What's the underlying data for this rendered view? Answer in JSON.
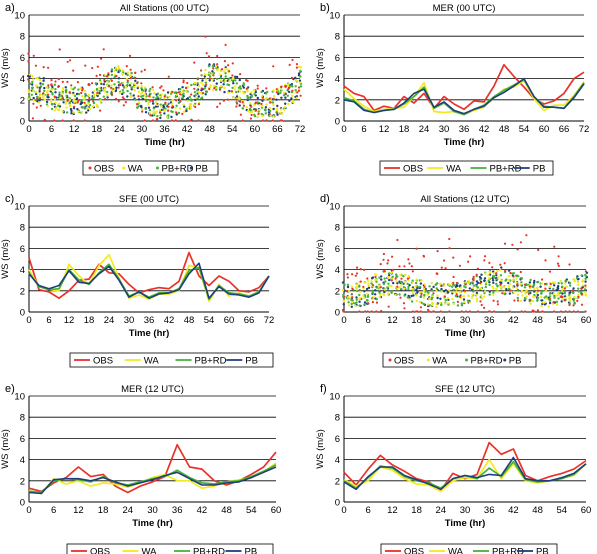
{
  "colors": {
    "OBS": "#e8322a",
    "WA": "#f2ea1c",
    "PB+RD": "#45b23a",
    "PB": "#1f3f7a"
  },
  "chart_data": [
    {
      "panel_letter": "a)",
      "title": "All Stations (00 UTC)",
      "type": "scatter",
      "xlabel": "Time (hr)",
      "ylabel": "WS (m/s)",
      "xlim": [
        0,
        72
      ],
      "ylim": [
        0,
        10
      ],
      "xticks": [
        "0",
        "6",
        "12",
        "18",
        "24",
        "30",
        "36",
        "42",
        "48",
        "54",
        "60",
        "66",
        "72"
      ],
      "yticks": [
        "0",
        "2",
        "4",
        "6",
        "8",
        "10"
      ],
      "grid": true,
      "legend_style": "dots",
      "legend": [
        "OBS",
        "WA",
        "PB+RD",
        "PB"
      ],
      "series_mean": {
        "x": [
          0,
          3,
          6,
          9,
          12,
          15,
          18,
          21,
          24,
          27,
          30,
          33,
          36,
          39,
          42,
          45,
          48,
          51,
          54,
          57,
          60,
          63,
          66,
          69,
          72
        ],
        "y": [
          3.2,
          3.0,
          2.3,
          2.0,
          1.9,
          2.0,
          2.6,
          3.5,
          3.9,
          3.4,
          2.0,
          1.7,
          1.5,
          1.6,
          2.2,
          2.8,
          4.1,
          4.2,
          3.3,
          2.3,
          1.7,
          1.5,
          1.8,
          2.3,
          4.0
        ]
      },
      "spread": [
        1.6,
        2.6
      ]
    },
    {
      "panel_letter": "b)",
      "title": "MER (00 UTC)",
      "type": "line",
      "xlabel": "Time (hr)",
      "ylabel": "WS (m/s)",
      "xlim": [
        0,
        72
      ],
      "ylim": [
        0,
        10
      ],
      "xticks": [
        "0",
        "6",
        "12",
        "18",
        "24",
        "30",
        "36",
        "42",
        "48",
        "54",
        "60",
        "66",
        "72"
      ],
      "yticks": [
        "0",
        "2",
        "4",
        "6",
        "8",
        "10"
      ],
      "grid": true,
      "legend_style": "lines",
      "legend": [
        "OBS",
        "WA",
        "PB+RD",
        "PB"
      ],
      "x": [
        0,
        3,
        6,
        9,
        12,
        15,
        18,
        21,
        24,
        27,
        30,
        33,
        36,
        39,
        42,
        45,
        48,
        51,
        54,
        57,
        60,
        63,
        66,
        69,
        72
      ],
      "series": [
        {
          "name": "OBS",
          "values": [
            3.3,
            2.6,
            2.3,
            1.0,
            1.4,
            1.2,
            2.3,
            1.7,
            2.6,
            1.2,
            2.3,
            1.6,
            1.1,
            1.9,
            1.8,
            3.3,
            5.3,
            4.2,
            3.2,
            2.1,
            1.6,
            1.9,
            2.6,
            4.0,
            4.6
          ]
        },
        {
          "name": "WA",
          "values": [
            3.0,
            2.1,
            1.4,
            0.9,
            1.1,
            1.2,
            1.3,
            2.3,
            3.6,
            0.9,
            0.8,
            0.9,
            0.6,
            1.0,
            1.3,
            2.2,
            3.0,
            3.2,
            3.8,
            2.1,
            1.0,
            1.5,
            1.5,
            2.4,
            3.7
          ]
        },
        {
          "name": "PB+RD",
          "values": [
            2.2,
            1.9,
            1.1,
            0.8,
            1.0,
            1.1,
            1.6,
            2.3,
            3.2,
            1.2,
            1.7,
            0.9,
            0.6,
            1.1,
            1.5,
            2.3,
            2.9,
            3.4,
            3.9,
            2.3,
            1.4,
            1.3,
            1.2,
            2.3,
            3.6
          ]
        },
        {
          "name": "PB",
          "values": [
            2.0,
            1.8,
            1.0,
            0.8,
            1.0,
            1.1,
            1.7,
            2.6,
            3.0,
            1.3,
            1.8,
            1.0,
            0.7,
            1.1,
            1.4,
            2.2,
            2.7,
            3.3,
            4.0,
            2.3,
            1.3,
            1.3,
            1.2,
            2.2,
            3.5
          ]
        }
      ]
    },
    {
      "panel_letter": "c)",
      "title": "SFE (00 UTC)",
      "type": "line",
      "xlabel": "Time (hr)",
      "ylabel": "WS (m/s)",
      "xlim": [
        0,
        72
      ],
      "ylim": [
        0,
        10
      ],
      "xticks": [
        "0",
        "6",
        "12",
        "18",
        "24",
        "30",
        "36",
        "42",
        "48",
        "54",
        "60",
        "66",
        "72"
      ],
      "yticks": [
        "0",
        "2",
        "4",
        "6",
        "8",
        "10"
      ],
      "grid": true,
      "legend_style": "lines",
      "legend": [
        "OBS",
        "WA",
        "PB+RD",
        "PB"
      ],
      "x": [
        0,
        3,
        6,
        9,
        12,
        15,
        18,
        21,
        24,
        27,
        30,
        33,
        36,
        39,
        42,
        45,
        48,
        51,
        54,
        57,
        60,
        63,
        66,
        69,
        72
      ],
      "series": [
        {
          "name": "OBS",
          "values": [
            5.1,
            2.1,
            1.9,
            1.3,
            2.0,
            3.0,
            3.1,
            4.5,
            3.7,
            3.6,
            2.6,
            1.8,
            2.1,
            2.3,
            2.2,
            2.9,
            5.6,
            3.4,
            2.5,
            3.4,
            2.9,
            2.0,
            1.9,
            2.3,
            3.4
          ]
        },
        {
          "name": "WA",
          "values": [
            4.0,
            2.4,
            2.1,
            2.0,
            4.5,
            3.4,
            2.6,
            4.4,
            5.4,
            3.2,
            1.3,
            1.6,
            1.2,
            1.7,
            1.7,
            2.0,
            4.4,
            4.2,
            1.0,
            2.6,
            1.5,
            1.8,
            1.5,
            1.9,
            3.4
          ]
        },
        {
          "name": "PB+RD",
          "values": [
            3.7,
            2.4,
            2.1,
            2.2,
            4.0,
            3.0,
            2.6,
            3.7,
            4.5,
            3.1,
            1.5,
            1.9,
            1.4,
            1.8,
            1.8,
            2.2,
            3.9,
            4.2,
            1.2,
            2.5,
            1.8,
            1.7,
            1.5,
            1.9,
            3.4
          ]
        },
        {
          "name": "PB",
          "values": [
            3.6,
            2.5,
            2.2,
            2.5,
            3.9,
            2.8,
            2.7,
            3.6,
            4.3,
            3.0,
            1.4,
            1.9,
            1.3,
            1.7,
            1.8,
            2.1,
            3.6,
            4.6,
            1.3,
            2.4,
            1.7,
            1.6,
            1.4,
            1.8,
            3.4
          ]
        }
      ]
    },
    {
      "panel_letter": "d)",
      "title": "All Stations (12 UTC)",
      "type": "scatter",
      "xlabel": "Time (hr)",
      "ylabel": "WS (m/s)",
      "xlim": [
        0,
        60
      ],
      "ylim": [
        0,
        10
      ],
      "xticks": [
        "0",
        "6",
        "12",
        "18",
        "24",
        "30",
        "36",
        "42",
        "48",
        "54",
        "60"
      ],
      "yticks": [
        "0",
        "2",
        "4",
        "6",
        "8",
        "10"
      ],
      "grid": true,
      "legend_style": "dots",
      "legend": [
        "OBS",
        "WA",
        "PB+RD",
        "PB"
      ],
      "series_mean": {
        "x": [
          0,
          3,
          6,
          9,
          12,
          15,
          18,
          21,
          24,
          27,
          30,
          33,
          36,
          39,
          42,
          45,
          48,
          51,
          54,
          57,
          60
        ],
        "y": [
          1.8,
          1.6,
          1.9,
          2.6,
          2.9,
          2.5,
          2.0,
          1.6,
          1.5,
          1.7,
          1.9,
          2.2,
          2.7,
          3.0,
          2.6,
          2.0,
          1.7,
          1.6,
          1.8,
          2.0,
          2.6
        ]
      },
      "spread": [
        1.5,
        3.5
      ]
    },
    {
      "panel_letter": "e)",
      "title": "MER (12 UTC)",
      "type": "line",
      "xlabel": "Time (hr)",
      "ylabel": "WS (m/s)",
      "xlim": [
        0,
        60
      ],
      "ylim": [
        0,
        10
      ],
      "xticks": [
        "0",
        "6",
        "12",
        "18",
        "24",
        "30",
        "36",
        "42",
        "48",
        "54",
        "60"
      ],
      "yticks": [
        "0",
        "2",
        "4",
        "6",
        "8",
        "10"
      ],
      "grid": true,
      "legend_style": "lines",
      "legend": [
        "OBS",
        "WA",
        "PB+RD",
        "PB"
      ],
      "x": [
        0,
        3,
        6,
        9,
        12,
        15,
        18,
        21,
        24,
        27,
        30,
        33,
        36,
        39,
        42,
        45,
        48,
        51,
        54,
        57,
        60
      ],
      "series": [
        {
          "name": "OBS",
          "values": [
            1.3,
            1.0,
            1.8,
            2.3,
            3.3,
            2.4,
            2.6,
            1.5,
            0.9,
            1.5,
            1.9,
            2.4,
            5.4,
            3.3,
            3.1,
            2.0,
            1.6,
            2.0,
            2.6,
            3.3,
            4.7
          ]
        },
        {
          "name": "WA",
          "values": [
            1.1,
            0.8,
            2.2,
            1.7,
            2.0,
            1.5,
            1.8,
            1.7,
            1.4,
            1.8,
            2.3,
            2.6,
            2.0,
            2.0,
            1.3,
            1.5,
            1.9,
            2.1,
            2.3,
            2.8,
            3.7
          ]
        },
        {
          "name": "PB+RD",
          "values": [
            1.0,
            0.9,
            2.0,
            2.2,
            2.1,
            1.9,
            2.4,
            1.8,
            1.6,
            1.9,
            2.2,
            2.4,
            3.0,
            2.3,
            1.8,
            1.7,
            1.9,
            2.0,
            2.4,
            2.9,
            3.5
          ]
        },
        {
          "name": "PB",
          "values": [
            0.9,
            0.8,
            2.1,
            2.2,
            2.2,
            2.0,
            2.3,
            1.9,
            1.5,
            1.8,
            2.1,
            2.5,
            2.8,
            2.2,
            1.6,
            1.6,
            1.8,
            1.9,
            2.3,
            2.8,
            3.3
          ]
        }
      ]
    },
    {
      "panel_letter": "f)",
      "title": "SFE (12 UTC)",
      "type": "line",
      "xlabel": "Time (hr)",
      "ylabel": "WS (m/s)",
      "xlim": [
        0,
        60
      ],
      "ylim": [
        0,
        10
      ],
      "xticks": [
        "0",
        "6",
        "12",
        "18",
        "24",
        "30",
        "36",
        "42",
        "48",
        "54",
        "60"
      ],
      "yticks": [
        "0",
        "2",
        "4",
        "6",
        "8",
        "10"
      ],
      "grid": true,
      "legend_style": "lines",
      "legend": [
        "OBS",
        "WA",
        "PB+RD",
        "PB"
      ],
      "x": [
        0,
        3,
        6,
        9,
        12,
        15,
        18,
        21,
        24,
        27,
        30,
        33,
        36,
        39,
        42,
        45,
        48,
        51,
        54,
        57,
        60
      ],
      "series": [
        {
          "name": "OBS",
          "values": [
            2.8,
            1.6,
            3.1,
            4.4,
            3.5,
            2.9,
            2.2,
            1.9,
            1.1,
            2.7,
            2.2,
            2.6,
            5.6,
            4.5,
            5.0,
            2.5,
            2.0,
            2.4,
            2.7,
            3.1,
            3.9
          ]
        },
        {
          "name": "WA",
          "values": [
            2.1,
            1.5,
            2.0,
            3.3,
            3.0,
            2.2,
            1.7,
            1.6,
            1.0,
            2.0,
            2.3,
            2.2,
            4.0,
            2.2,
            3.6,
            2.0,
            1.8,
            2.0,
            2.3,
            2.5,
            3.6
          ]
        },
        {
          "name": "PB+RD",
          "values": [
            2.0,
            1.3,
            2.3,
            3.4,
            3.2,
            2.4,
            2.0,
            1.8,
            1.3,
            2.2,
            2.5,
            2.2,
            3.2,
            2.4,
            3.8,
            2.1,
            1.9,
            2.0,
            2.2,
            2.6,
            3.6
          ]
        },
        {
          "name": "PB",
          "values": [
            1.9,
            1.2,
            2.4,
            3.3,
            3.3,
            2.5,
            2.1,
            1.7,
            1.2,
            2.2,
            2.5,
            2.3,
            2.6,
            2.5,
            4.2,
            2.2,
            2.0,
            2.0,
            2.3,
            2.7,
            3.6
          ]
        }
      ]
    }
  ]
}
